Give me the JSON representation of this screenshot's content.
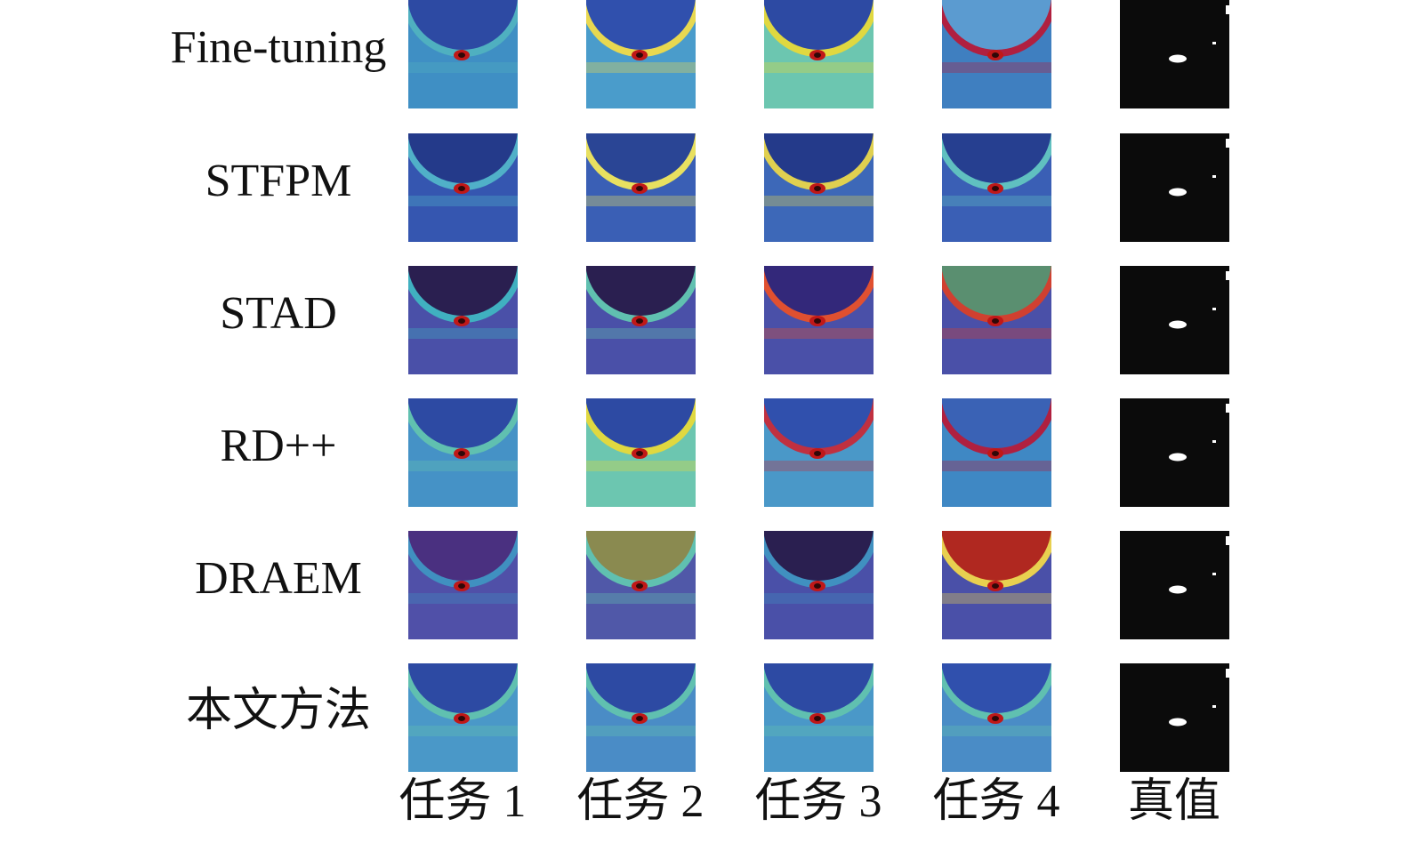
{
  "row_labels": [
    "Fine-tuning",
    "STFPM",
    "STAD",
    "RD++",
    "DRAEM",
    "本文方法"
  ],
  "column_labels": [
    "任务 1",
    "任务 2",
    "任务 3",
    "任务 4",
    "真值"
  ]
}
